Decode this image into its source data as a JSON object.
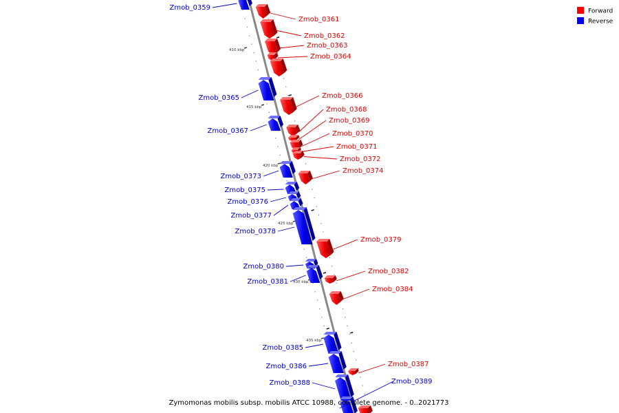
{
  "caption": "Zymomonas mobilis subsp. mobilis ATCC 10988, complete genome. - 0..2021773",
  "legend": [
    {
      "label": "Forward",
      "color": "#ff0000"
    },
    {
      "label": "Reverse",
      "color": "#0000ff"
    }
  ],
  "colors": {
    "forward": "#ff0000",
    "forward_label": "#dd0000",
    "reverse": "#0000ff",
    "reverse_label": "#0000cc",
    "backbone": "#888888"
  },
  "ruler_ticks": [
    "410 kbp",
    "415 kbp",
    "420 kbp",
    "425 kbp",
    "430 kbp",
    "435 kbp"
  ],
  "genes": [
    {
      "id": "Zmob_0359",
      "strand": "reverse"
    },
    {
      "id": "Zmob_0361",
      "strand": "forward"
    },
    {
      "id": "Zmob_0362",
      "strand": "forward"
    },
    {
      "id": "Zmob_0363",
      "strand": "forward"
    },
    {
      "id": "Zmob_0364",
      "strand": "forward"
    },
    {
      "id": "Zmob_0365",
      "strand": "reverse"
    },
    {
      "id": "Zmob_0366",
      "strand": "forward"
    },
    {
      "id": "Zmob_0367",
      "strand": "reverse"
    },
    {
      "id": "Zmob_0368",
      "strand": "forward"
    },
    {
      "id": "Zmob_0369",
      "strand": "forward"
    },
    {
      "id": "Zmob_0370",
      "strand": "forward"
    },
    {
      "id": "Zmob_0371",
      "strand": "forward"
    },
    {
      "id": "Zmob_0372",
      "strand": "forward"
    },
    {
      "id": "Zmob_0373",
      "strand": "reverse"
    },
    {
      "id": "Zmob_0374",
      "strand": "forward"
    },
    {
      "id": "Zmob_0375",
      "strand": "reverse"
    },
    {
      "id": "Zmob_0376",
      "strand": "reverse"
    },
    {
      "id": "Zmob_0377",
      "strand": "reverse"
    },
    {
      "id": "Zmob_0378",
      "strand": "reverse"
    },
    {
      "id": "Zmob_0379",
      "strand": "forward"
    },
    {
      "id": "Zmob_0380",
      "strand": "reverse"
    },
    {
      "id": "Zmob_0381",
      "strand": "reverse"
    },
    {
      "id": "Zmob_0382",
      "strand": "forward"
    },
    {
      "id": "Zmob_0384",
      "strand": "forward"
    },
    {
      "id": "Zmob_0385",
      "strand": "reverse"
    },
    {
      "id": "Zmob_0386",
      "strand": "reverse"
    },
    {
      "id": "Zmob_0387",
      "strand": "forward"
    },
    {
      "id": "Zmob_0388",
      "strand": "reverse"
    },
    {
      "id": "Zmob_0389",
      "strand": "reverse"
    }
  ]
}
